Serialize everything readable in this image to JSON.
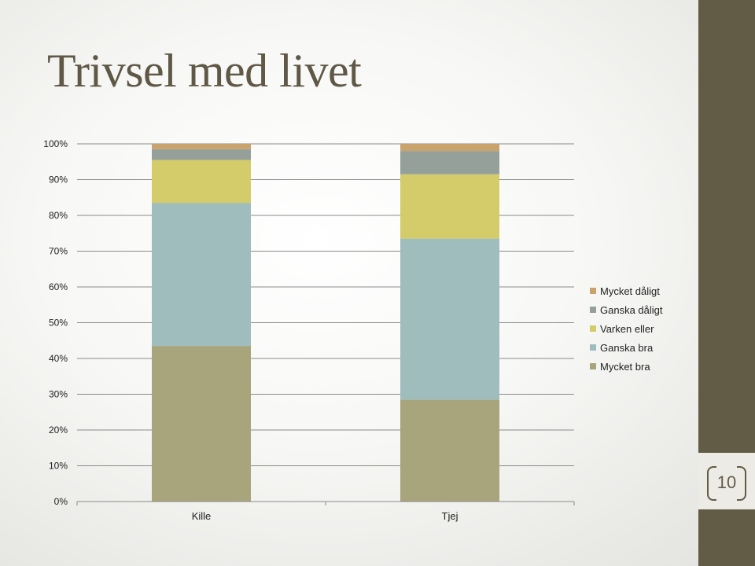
{
  "slide": {
    "title": "Trivsel med livet",
    "page_number": "10"
  },
  "colors": {
    "accent_band": "#625b45",
    "title_text": "#5f5846"
  },
  "chart_data": {
    "type": "bar",
    "stacked": true,
    "percent_stacked": true,
    "categories": [
      "Kille",
      "Tjej"
    ],
    "series": [
      {
        "name": "Mycket bra",
        "color": "#a8a57c",
        "values": [
          43.5,
          28.5
        ]
      },
      {
        "name": "Ganska bra",
        "color": "#9fbdbc",
        "values": [
          40.0,
          45.0
        ]
      },
      {
        "name": "Varken eller",
        "color": "#d4cc6a",
        "values": [
          12.0,
          18.0
        ]
      },
      {
        "name": "Ganska dåligt",
        "color": "#96a09a",
        "values": [
          3.0,
          6.5
        ]
      },
      {
        "name": "Mycket dåligt",
        "color": "#c9a36b",
        "values": [
          1.5,
          2.0
        ]
      }
    ],
    "ylim": [
      0,
      100
    ],
    "yticks": [
      "0%",
      "10%",
      "20%",
      "30%",
      "40%",
      "50%",
      "60%",
      "70%",
      "80%",
      "90%",
      "100%"
    ],
    "grid": true,
    "legend_position": "right",
    "title": "",
    "xlabel": "",
    "ylabel": ""
  }
}
